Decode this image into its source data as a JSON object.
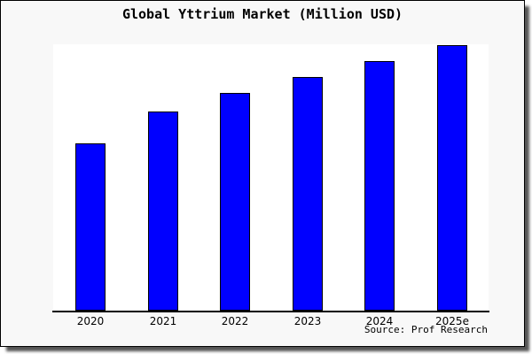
{
  "chart_data": {
    "type": "bar",
    "title": "Global Yttrium Market (Million USD)",
    "categories": [
      "2020",
      "2021",
      "2022",
      "2023",
      "2024",
      "2025e"
    ],
    "values_relative_pct": [
      63,
      75,
      82,
      88,
      94,
      100
    ],
    "xlabel": "",
    "ylabel": "",
    "y_axis_visible": false,
    "y_tick_labels": [],
    "grid": false,
    "legend": "none",
    "bar_color": "#0000ff",
    "bar_border_color": "#000000"
  },
  "source": "Source: Prof Research",
  "colors": {
    "canvas_background": "#f8f8f8",
    "plot_background": "#ffffff",
    "frame_border": "#000000",
    "axis": "#000000"
  }
}
